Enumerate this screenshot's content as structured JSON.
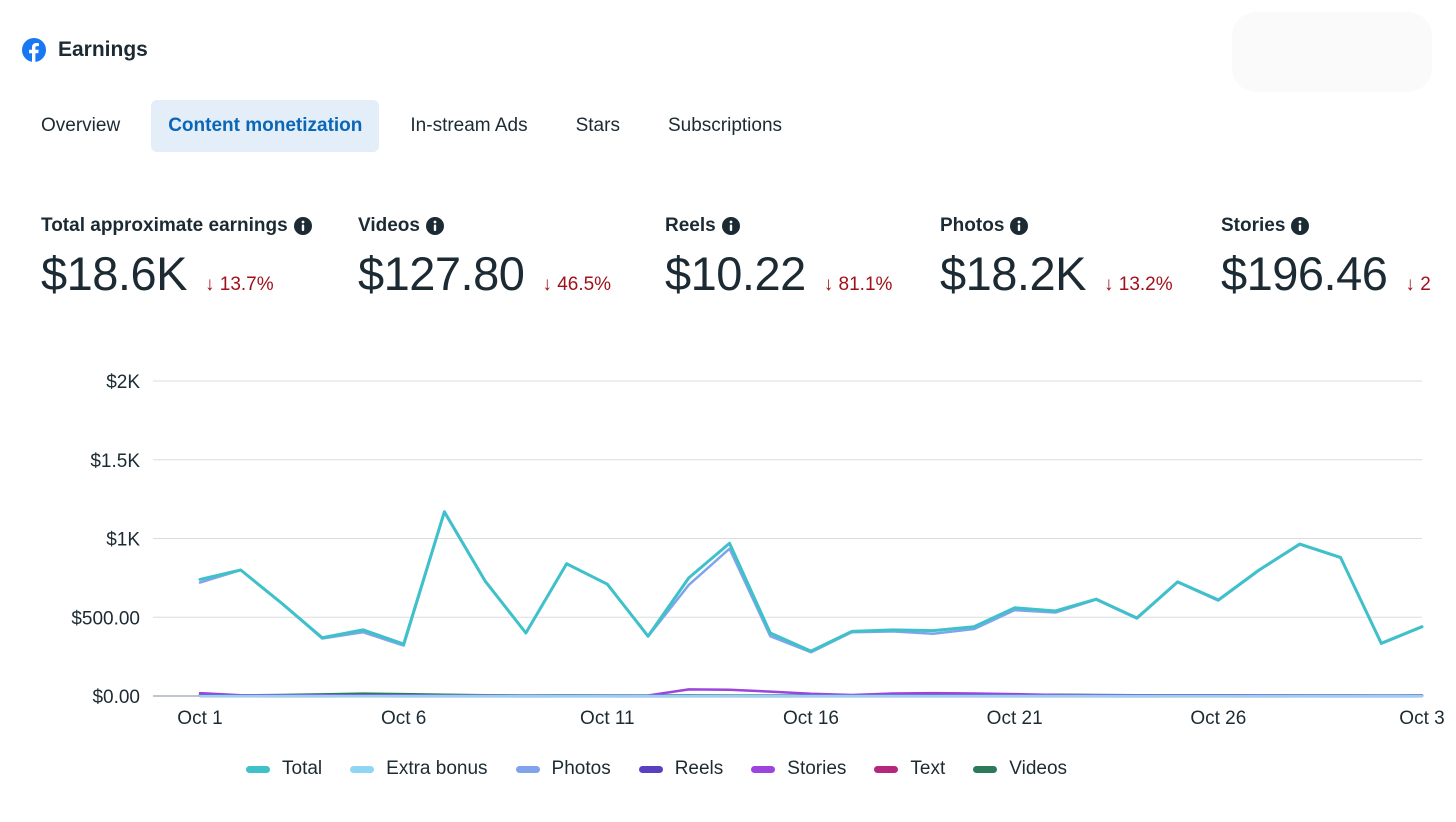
{
  "app": {
    "title": "Earnings",
    "logo_icon": "facebook-logo-icon",
    "brand_color": "#1877f2"
  },
  "tabs": [
    {
      "label": "Overview",
      "active": false
    },
    {
      "label": "Content monetization",
      "active": true
    },
    {
      "label": "In-stream Ads",
      "active": false
    },
    {
      "label": "Stars",
      "active": false
    },
    {
      "label": "Subscriptions",
      "active": false
    }
  ],
  "metrics": [
    {
      "label": "Total approximate earnings",
      "value": "$18.6K",
      "change": "13.7%",
      "direction": "down"
    },
    {
      "label": "Videos",
      "value": "$127.80",
      "change": "46.5%",
      "direction": "down"
    },
    {
      "label": "Reels",
      "value": "$10.22",
      "change": "81.1%",
      "direction": "down"
    },
    {
      "label": "Photos",
      "value": "$18.2K",
      "change": "13.2%",
      "direction": "down"
    },
    {
      "label": "Stories",
      "value": "$196.46",
      "change": "2",
      "direction": "down"
    }
  ],
  "colors": {
    "down": "#a1111b",
    "accent": "#0a66b7",
    "grid": "#d9dde1",
    "axis": "#aab2ba"
  },
  "chart_data": {
    "type": "line",
    "title": "",
    "xlabel": "",
    "ylabel": "",
    "ylim": [
      0,
      2000
    ],
    "y_ticks": [
      0,
      500,
      1000,
      1500,
      2000
    ],
    "y_tick_labels": [
      "$0.00",
      "$500.00",
      "$1K",
      "$1.5K",
      "$2K"
    ],
    "x": [
      1,
      2,
      3,
      4,
      5,
      6,
      7,
      8,
      9,
      10,
      11,
      12,
      13,
      14,
      15,
      16,
      17,
      18,
      19,
      20,
      21,
      22,
      23,
      24,
      25,
      26,
      27,
      28,
      29,
      30,
      31
    ],
    "x_ticks": [
      1,
      6,
      11,
      16,
      21,
      26,
      31
    ],
    "x_tick_labels": [
      "Oct 1",
      "Oct 6",
      "Oct 11",
      "Oct 16",
      "Oct 21",
      "Oct 26",
      "Oct 3"
    ],
    "grid": true,
    "legend_position": "bottom",
    "series": [
      {
        "name": "Total",
        "color": "#3fc1c9",
        "values": [
          740,
          800,
          590,
          370,
          420,
          330,
          1170,
          730,
          400,
          840,
          710,
          380,
          750,
          970,
          400,
          285,
          410,
          420,
          415,
          440,
          560,
          540,
          615,
          495,
          725,
          610,
          800,
          965,
          880,
          335,
          440
        ]
      },
      {
        "name": "Extra bonus",
        "color": "#8fd6f5",
        "values": [
          0,
          0,
          0,
          0,
          0,
          0,
          0,
          0,
          0,
          0,
          0,
          0,
          0,
          0,
          0,
          0,
          0,
          0,
          0,
          0,
          0,
          0,
          0,
          0,
          0,
          0,
          0,
          0,
          0,
          0,
          0
        ]
      },
      {
        "name": "Photos",
        "color": "#7fa4ec",
        "values": [
          720,
          800,
          590,
          365,
          405,
          320,
          1165,
          728,
          400,
          838,
          710,
          378,
          705,
          935,
          380,
          278,
          405,
          410,
          395,
          425,
          545,
          530,
          612,
          492,
          722,
          606,
          798,
          962,
          878,
          332,
          438
        ]
      },
      {
        "name": "Reels",
        "color": "#5a3fc0",
        "values": [
          3,
          2,
          1,
          1,
          2,
          1,
          1,
          1,
          0,
          1,
          1,
          0,
          1,
          1,
          0,
          1,
          1,
          1,
          1,
          1,
          1,
          1,
          1,
          0,
          1,
          1,
          0,
          1,
          0,
          0,
          1
        ]
      },
      {
        "name": "Stories",
        "color": "#9c44dc",
        "values": [
          18,
          5,
          4,
          5,
          4,
          4,
          3,
          3,
          2,
          2,
          2,
          3,
          42,
          40,
          28,
          14,
          6,
          16,
          18,
          16,
          12,
          6,
          5,
          4,
          4,
          4,
          4,
          3,
          3,
          3,
          3
        ]
      },
      {
        "name": "Text",
        "color": "#b4277d",
        "values": [
          0,
          0,
          0,
          0,
          0,
          0,
          0,
          0,
          0,
          0,
          0,
          0,
          0,
          0,
          0,
          0,
          0,
          0,
          0,
          0,
          0,
          0,
          0,
          0,
          0,
          0,
          0,
          0,
          0,
          0,
          0
        ]
      },
      {
        "name": "Videos",
        "color": "#2b7a5a",
        "values": [
          5,
          4,
          6,
          10,
          15,
          12,
          8,
          5,
          3,
          4,
          3,
          3,
          4,
          3,
          3,
          3,
          4,
          6,
          5,
          6,
          5,
          8,
          6,
          5,
          4,
          4,
          3,
          3,
          3,
          2,
          3
        ]
      }
    ]
  }
}
